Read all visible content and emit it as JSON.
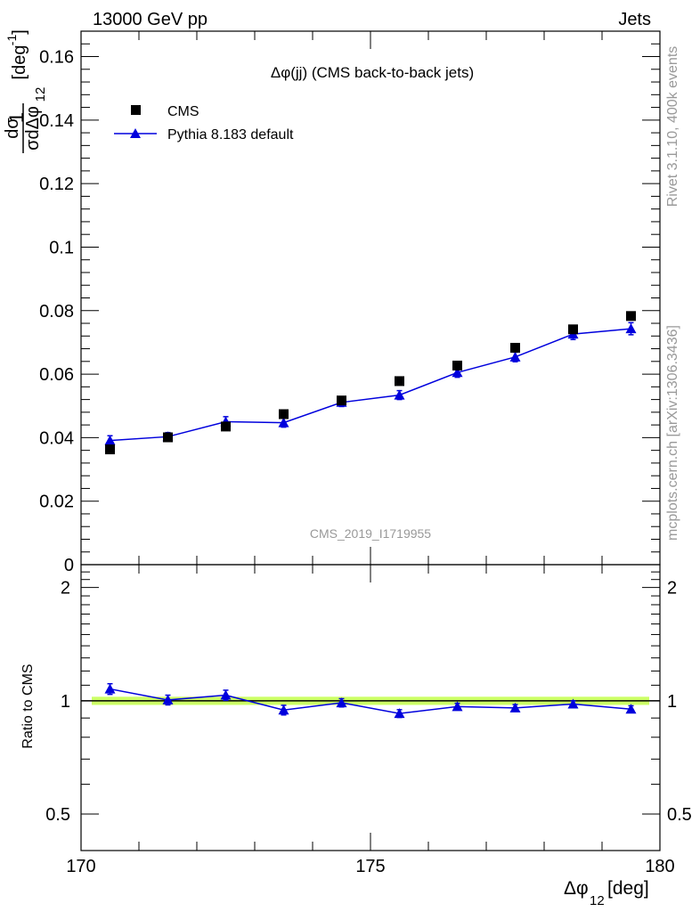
{
  "header": {
    "left_label": "13000 GeV pp",
    "right_label": "Jets"
  },
  "side_labels": {
    "rivet": "Rivet 3.1.10,  400k events",
    "mcplots": "mcplots.cern.ch [arXiv:1306.3436]"
  },
  "watermark": "CMS_2019_I1719955",
  "chart_data": [
    {
      "type": "scatter",
      "panel": "main",
      "title": "Δφ(jj) (CMS back-to-back jets)",
      "ylabel": {
        "main": "1",
        "num": "dσ",
        "den": "σdΔφ",
        "sub": "12",
        "unit": "[deg",
        "unit_exp": "-1",
        "close": "]"
      },
      "xlim": [
        170,
        180
      ],
      "ylim": [
        0,
        0.168
      ],
      "y_ticks": [
        0,
        0.02,
        0.04,
        0.06,
        0.08,
        0.1,
        0.12,
        0.14,
        0.16
      ],
      "y_tick_labels": [
        "0",
        "0.02",
        "0.04",
        "0.06",
        "0.08",
        "0.1",
        "0.12",
        "0.14",
        "0.16"
      ],
      "legend_position": "top-left",
      "x": [
        170.5,
        171.5,
        172.5,
        173.5,
        174.5,
        175.5,
        176.5,
        177.5,
        178.5,
        179.5
      ],
      "series": [
        {
          "name": "CMS",
          "marker": "square",
          "color": "#000000",
          "values": [
            0.0363,
            0.0401,
            0.0435,
            0.0474,
            0.0517,
            0.0578,
            0.0627,
            0.0683,
            0.0741,
            0.0783
          ],
          "errors": [
            0.0006,
            0.0006,
            0.0006,
            0.0006,
            0.0006,
            0.0006,
            0.0006,
            0.0006,
            0.0006,
            0.0006
          ]
        },
        {
          "name": "Pythia 8.183 default",
          "marker": "triangle",
          "color": "#0000dd",
          "values": [
            0.0391,
            0.0403,
            0.045,
            0.0447,
            0.0511,
            0.0534,
            0.0605,
            0.0654,
            0.0726,
            0.0743
          ],
          "errors": [
            0.0015,
            0.0013,
            0.0016,
            0.0014,
            0.0013,
            0.0014,
            0.0015,
            0.0015,
            0.0017,
            0.0019
          ]
        }
      ]
    },
    {
      "type": "line",
      "panel": "ratio",
      "ylabel": "Ratio to CMS",
      "xlabel": "Δφ",
      "xlabel_sub": "12",
      "xlabel_unit": " [deg]",
      "xlim": [
        170,
        180
      ],
      "x_ticks": [
        170,
        175,
        180
      ],
      "x_tick_labels": [
        "170",
        "175",
        "180"
      ],
      "ylim": [
        0.4,
        2.3
      ],
      "y_scale": "log",
      "y_ticks": [
        0.5,
        1,
        2
      ],
      "y_tick_labels": [
        "0.5",
        "1",
        "2"
      ],
      "reference_band": [
        0.975,
        1.025
      ],
      "reference_band_color": "#ccff66",
      "x": [
        170.5,
        171.5,
        172.5,
        173.5,
        174.5,
        175.5,
        176.5,
        177.5,
        178.5,
        179.5
      ],
      "series": [
        {
          "name": "Pythia 8.183 default",
          "color": "#0000dd",
          "values": [
            1.075,
            1.005,
            1.035,
            0.945,
            0.988,
            0.925,
            0.965,
            0.957,
            0.98,
            0.95
          ],
          "errors": [
            0.035,
            0.03,
            0.032,
            0.028,
            0.025,
            0.022,
            0.02,
            0.02,
            0.02,
            0.02
          ]
        }
      ]
    }
  ]
}
